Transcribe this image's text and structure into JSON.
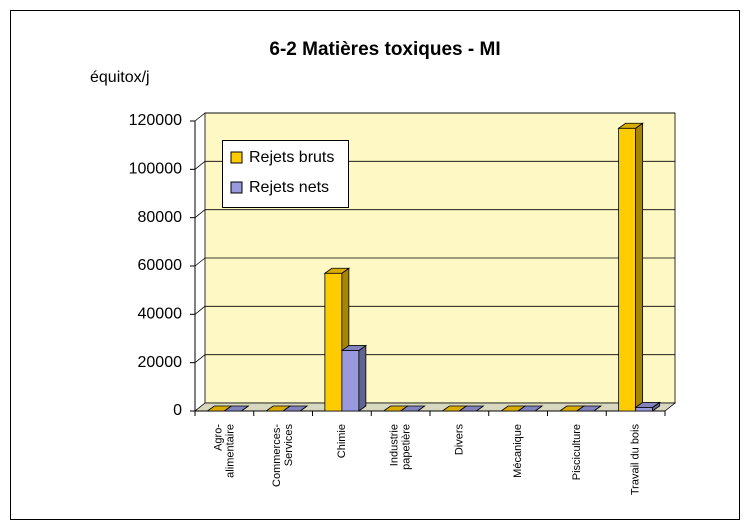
{
  "chart_data": {
    "type": "bar3d",
    "title": "6-2 Matières toxiques - MI",
    "y_label": "équitox/j",
    "categories": [
      "Agro-\nalimentaire",
      "Commerces-\nServices",
      "Chimie",
      "Industrie\npapetière",
      "Divers",
      "Mécanique",
      "Pisciculture",
      "Travail du bois"
    ],
    "series": [
      {
        "name": "Rejets bruts",
        "color": "#ffcc00",
        "values": [
          0,
          0,
          57000,
          0,
          0,
          0,
          0,
          117000
        ]
      },
      {
        "name": "Rejets nets",
        "color": "#9999dd",
        "values": [
          0,
          0,
          25000,
          0,
          0,
          0,
          0,
          1500
        ]
      }
    ],
    "ylim": [
      0,
      120000
    ],
    "yticks": [
      0,
      20000,
      40000,
      60000,
      80000,
      100000,
      120000
    ],
    "grid": true,
    "legend": "upper left"
  }
}
